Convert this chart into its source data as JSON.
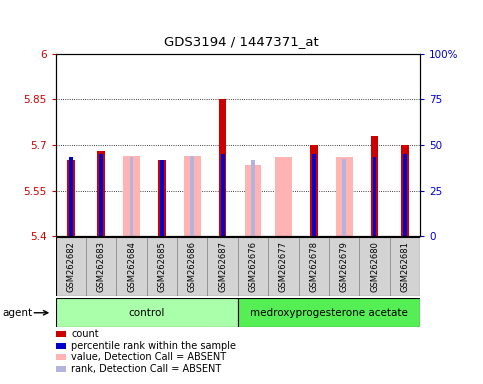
{
  "title": "GDS3194 / 1447371_at",
  "samples": [
    "GSM262682",
    "GSM262683",
    "GSM262684",
    "GSM262685",
    "GSM262686",
    "GSM262687",
    "GSM262676",
    "GSM262677",
    "GSM262678",
    "GSM262679",
    "GSM262680",
    "GSM262681"
  ],
  "count_values": [
    5.65,
    5.68,
    null,
    5.65,
    null,
    5.85,
    null,
    null,
    5.7,
    null,
    5.73,
    5.7
  ],
  "rank_values": [
    5.66,
    5.67,
    null,
    5.65,
    null,
    5.67,
    null,
    null,
    5.67,
    null,
    5.66,
    5.67
  ],
  "absent_value_values": [
    null,
    null,
    5.665,
    null,
    5.665,
    null,
    5.635,
    5.66,
    null,
    5.66,
    null,
    null
  ],
  "absent_rank_values": [
    null,
    null,
    5.66,
    null,
    5.665,
    null,
    5.65,
    null,
    null,
    5.655,
    null,
    null
  ],
  "ylim_left": [
    5.4,
    6.0
  ],
  "ylim_right": [
    0,
    100
  ],
  "yticks_left": [
    5.4,
    5.55,
    5.7,
    5.85,
    6.0
  ],
  "ytick_labels_left": [
    "5.4",
    "5.55",
    "5.7",
    "5.85",
    "6"
  ],
  "yticks_right": [
    0,
    25,
    50,
    75,
    100
  ],
  "ytick_labels_right": [
    "0",
    "25",
    "50",
    "75",
    "100%"
  ],
  "baseline": 5.4,
  "color_count": "#cc0000",
  "color_rank": "#0000cc",
  "color_absent_value": "#ffb3b3",
  "color_absent_rank": "#b3b3dd",
  "color_absent_rank_small": "#aaaacc",
  "bw_absent_value": 0.55,
  "bw_count": 0.25,
  "bw_rank": 0.12,
  "bw_absent_rank": 0.12,
  "legend_items": [
    {
      "label": "count",
      "color": "#cc0000"
    },
    {
      "label": "percentile rank within the sample",
      "color": "#0000cc"
    },
    {
      "label": "value, Detection Call = ABSENT",
      "color": "#ffb3b3"
    },
    {
      "label": "rank, Detection Call = ABSENT",
      "color": "#b3b3dd"
    }
  ]
}
